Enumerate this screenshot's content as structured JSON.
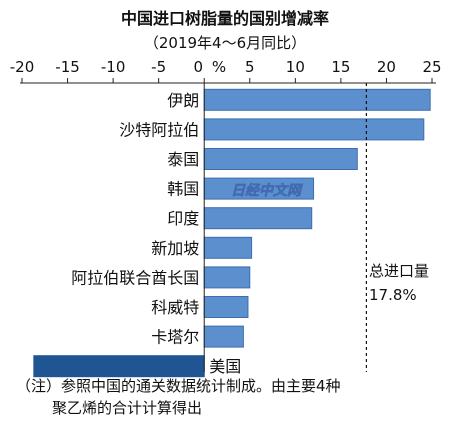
{
  "chart_data": {
    "type": "bar",
    "orientation": "horizontal",
    "title": "中国进口树脂量的国别增减率",
    "subtitle": "（2019年4～6月同比）",
    "unit_label": "%",
    "ticks": [
      -20,
      -15,
      -10,
      -5,
      0,
      5,
      10,
      15,
      20,
      25
    ],
    "xlim": [
      -20,
      25
    ],
    "categories": [
      "伊朗",
      "沙特阿拉伯",
      "泰国",
      "韩国",
      "印度",
      "新加坡",
      "阿拉伯联合酋长国",
      "科威特",
      "卡塔尔",
      "美国"
    ],
    "values": [
      24.8,
      24.1,
      16.8,
      12.0,
      11.8,
      5.2,
      5.0,
      4.8,
      4.3,
      -18.7
    ],
    "reference_line": {
      "label_line1": "总进口量",
      "label_line2": "17.8%",
      "value": 17.8
    },
    "note_line1": "（注）参照中国的通关数据统计制成。由主要4种",
    "note_line2": "聚乙烯的合计计算得出",
    "watermark": "日经中文网",
    "colors": {
      "positive": "#5b8fce",
      "negative": "#1f5592",
      "positive_stroke": "#3d6fae",
      "axis": "#222222"
    },
    "grid": false
  }
}
